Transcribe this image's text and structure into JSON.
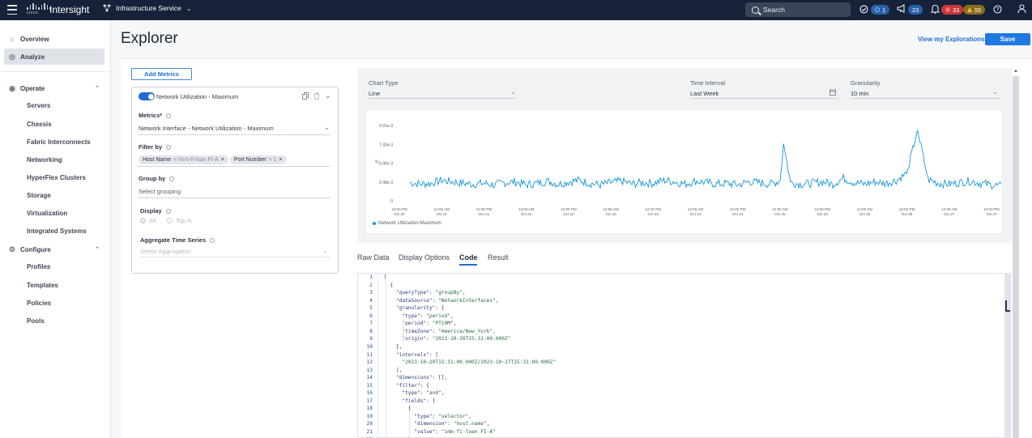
{
  "topbar": {
    "logo_text": "cisco",
    "brand": "Intersight",
    "service": "Infrastructure Service",
    "search_label": "Search",
    "badges": {
      "requests": "1",
      "announcements": "23",
      "critical_alarms": "33",
      "warning_alarms": "55"
    }
  },
  "sidebar": {
    "top_items": [
      "Overview",
      "Analyze"
    ],
    "operate_label": "Operate",
    "operate_items": [
      "Servers",
      "Chassis",
      "Fabric Interconnects",
      "Networking",
      "HyperFlex Clusters",
      "Storage",
      "Virtualization",
      "Integrated Systems"
    ],
    "configure_label": "Configure",
    "configure_items": [
      "Profiles",
      "Templates",
      "Policies",
      "Pools"
    ]
  },
  "header": {
    "title": "Explorer",
    "view_link": "View my Explorations",
    "save": "Save"
  },
  "metrics_panel": {
    "add_metrics": "Add Metrics",
    "card_title": "Network Utilization - Maximum",
    "metrics_label": "Metrics*",
    "metrics_value": "Network Interface - Network Utilization - Maximum",
    "filter_label": "Filter by",
    "filter_chips": [
      {
        "key": "Host Name",
        "value": "= imm-fi-loan FI-A"
      },
      {
        "key": "Port Number",
        "value": "= 1"
      }
    ],
    "group_label": "Group by",
    "group_placeholder": "Select grouping",
    "display_label": "Display",
    "display_options": [
      "All",
      "Top N"
    ],
    "aggregate_label": "Aggregate Time Series",
    "aggregate_placeholder": "Select Aggregation"
  },
  "chart_config": {
    "chart_type_label": "Chart Type",
    "chart_type_value": "Line",
    "time_interval_label": "Time Interval",
    "time_interval_value": "Last Week",
    "granularity_label": "Granularity",
    "granularity_value": "10 min"
  },
  "chart_data": {
    "type": "line",
    "ylabel": "%",
    "yticks": [
      "0",
      "2.48e-3",
      "4.96e-3",
      "7.43e-3",
      "9.91e-3"
    ],
    "ylim": [
      0,
      0.00991
    ],
    "xticks": [
      [
        "12:00 PM",
        "Oct 20"
      ],
      [
        "12:00 AM",
        "Oct 21"
      ],
      [
        "12:00 PM",
        "Oct 21"
      ],
      [
        "12:00 AM",
        "Oct 22"
      ],
      [
        "12:00 PM",
        "Oct 22"
      ],
      [
        "12:00 AM",
        "Oct 23"
      ],
      [
        "12:00 PM",
        "Oct 23"
      ],
      [
        "12:00 AM",
        "Oct 24"
      ],
      [
        "12:00 PM",
        "Oct 24"
      ],
      [
        "12:00 AM",
        "Oct 25"
      ],
      [
        "12:00 PM",
        "Oct 25"
      ],
      [
        "12:00 AM",
        "Oct 26"
      ],
      [
        "12:00 PM",
        "Oct 26"
      ],
      [
        "12:00 AM",
        "Oct 27"
      ],
      [
        "12:00 PM",
        "Oct 27"
      ]
    ],
    "series": [
      {
        "name": "Network Utilization-Maximum",
        "color": "#1496d8",
        "x": [
          "Oct 20 15:00",
          "Oct 20 18:00",
          "Oct 20 21:00",
          "Oct 21 00:00",
          "Oct 21 03:00",
          "Oct 21 06:00",
          "Oct 21 09:00",
          "Oct 21 12:00",
          "Oct 21 15:00",
          "Oct 21 18:00",
          "Oct 21 21:00",
          "Oct 22 00:00",
          "Oct 22 03:00",
          "Oct 22 06:00",
          "Oct 22 09:00",
          "Oct 22 12:00",
          "Oct 22 15:00",
          "Oct 22 18:00",
          "Oct 22 21:00",
          "Oct 23 00:00",
          "Oct 23 03:00",
          "Oct 23 06:00",
          "Oct 23 09:00",
          "Oct 23 12:00",
          "Oct 23 15:00",
          "Oct 23 18:00",
          "Oct 23 21:00",
          "Oct 24 00:00",
          "Oct 24 03:00",
          "Oct 24 06:00",
          "Oct 24 09:00",
          "Oct 24 12:00",
          "Oct 24 15:00",
          "Oct 24 18:00",
          "Oct 24 21:00",
          "Oct 25 00:00",
          "Oct 25 01:00",
          "Oct 25 03:00",
          "Oct 25 06:00",
          "Oct 25 09:00",
          "Oct 25 12:00",
          "Oct 25 15:00",
          "Oct 25 18:00",
          "Oct 25 21:00",
          "Oct 26 00:00",
          "Oct 26 03:00",
          "Oct 26 06:00",
          "Oct 26 09:00",
          "Oct 26 12:00",
          "Oct 26 15:00",
          "Oct 26 18:00",
          "Oct 26 21:00",
          "Oct 27 00:00",
          "Oct 27 03:00",
          "Oct 27 06:00",
          "Oct 27 09:00",
          "Oct 27 12:00",
          "Oct 27 15:00"
        ],
        "y": [
          0.0024,
          0.0022,
          0.0023,
          0.0027,
          0.0025,
          0.0023,
          0.0022,
          0.0023,
          0.0021,
          0.0024,
          0.0025,
          0.0021,
          0.0023,
          0.0026,
          0.0022,
          0.0025,
          0.0027,
          0.0023,
          0.0021,
          0.0024,
          0.0026,
          0.0022,
          0.0024,
          0.0023,
          0.0027,
          0.0025,
          0.0022,
          0.0026,
          0.0024,
          0.0022,
          0.0023,
          0.0021,
          0.0025,
          0.0024,
          0.0022,
          0.0026,
          0.0075,
          0.0024,
          0.0022,
          0.0023,
          0.0025,
          0.0022,
          0.003,
          0.0024,
          0.0022,
          0.0025,
          0.0023,
          0.0027,
          0.0036,
          0.0093,
          0.0028,
          0.0023,
          0.0022,
          0.0024,
          0.0026,
          0.0023,
          0.0021,
          0.0019
        ]
      }
    ]
  },
  "tabs": [
    "Raw Data",
    "Display Options",
    "Code",
    "Result"
  ],
  "code_lines": [
    "[",
    "  {",
    "    \"queryType\": \"groupBy\",",
    "    \"dataSource\": \"NetworkInterfaces\",",
    "    \"granularity\": {",
    "      \"type\": \"period\",",
    "      \"period\": \"PT10M\",",
    "      \"timeZone\": \"America/New_York\",",
    "      \"origin\": \"2023-10-20T15:31:00.000Z\"",
    "    },",
    "    \"intervals\": [",
    "      \"2023-10-20T15:31:00.000Z/2023-10-27T15:31:00.000Z\"",
    "    ],",
    "    \"dimensions\": [],",
    "    \"filter\": {",
    "      \"type\": \"and\",",
    "      \"fields\": [",
    "        {",
    "          \"type\": \"selector\",",
    "          \"dimension\": \"host.name\",",
    "          \"value\": \"imm-fi-loan FI-A\"",
    "        },"
  ]
}
